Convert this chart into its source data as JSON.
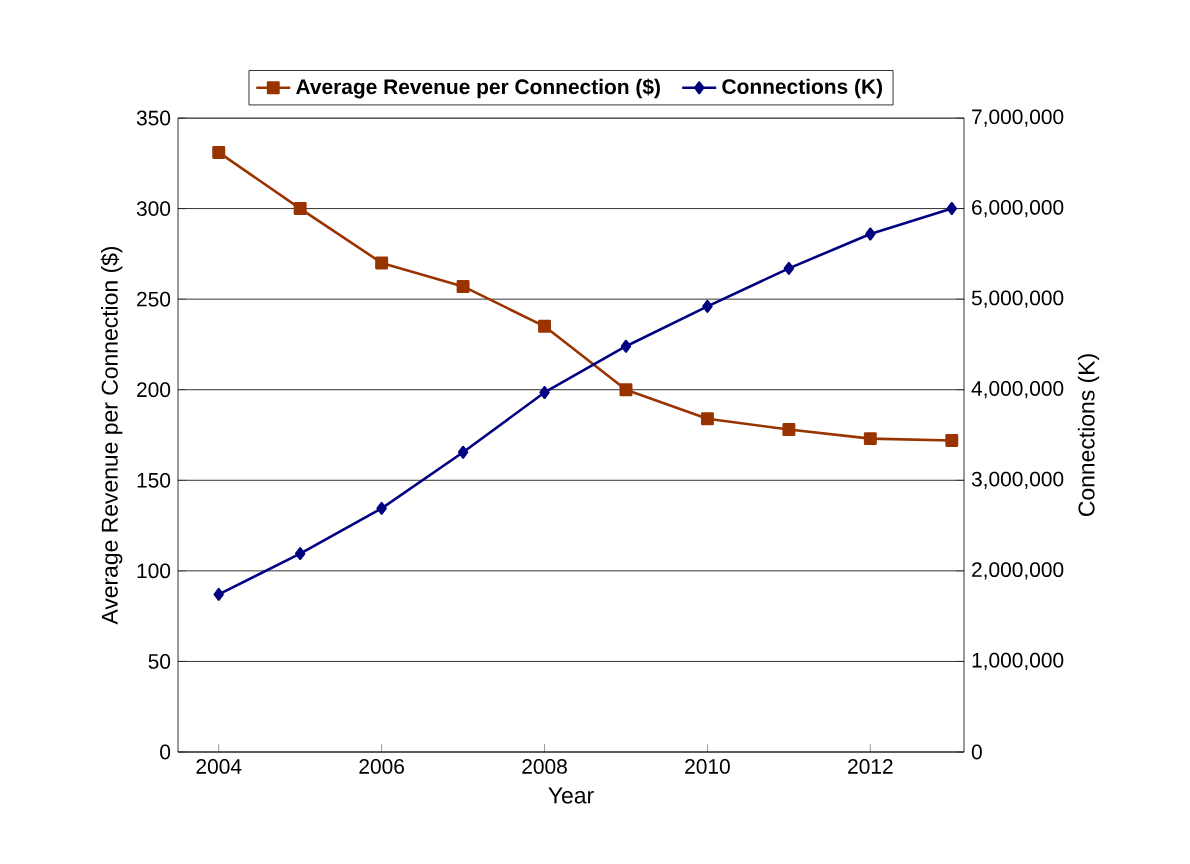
{
  "chart_data": {
    "type": "line",
    "xlabel": "Year",
    "ylabel": "Average Revenue per Connection ($)",
    "y2label": "Connections (K)",
    "x": [
      2004,
      2005,
      2006,
      2007,
      2008,
      2009,
      2010,
      2011,
      2012,
      2013
    ],
    "series": [
      {
        "name": "Average Revenue per Connection ($)",
        "color": "#993300",
        "marker": "square",
        "values": [
          331,
          300,
          270,
          257,
          235,
          200,
          184,
          178,
          173,
          172
        ]
      },
      {
        "name": "Connections (K)",
        "color": "#000080",
        "marker": "diamond",
        "axis": "y2",
        "values": [
          1740000,
          2190000,
          2690000,
          3310000,
          3970000,
          4480000,
          4920000,
          5340000,
          5720000,
          6000000
        ]
      }
    ],
    "xlim": [
      2003.5,
      2013.15
    ],
    "xticks": [
      2004,
      2006,
      2008,
      2010,
      2012
    ],
    "ylim": [
      0,
      350
    ],
    "yticks": [
      0,
      50,
      100,
      150,
      200,
      250,
      300,
      350
    ],
    "y2lim": [
      0,
      7000000
    ],
    "y2ticks": [
      {
        "value": 0,
        "label": "0"
      },
      {
        "value": 1000000,
        "label": "1,000,000"
      },
      {
        "value": 2000000,
        "label": "2,000,000"
      },
      {
        "value": 3000000,
        "label": "3,000,000"
      },
      {
        "value": 4000000,
        "label": "4,000,000"
      },
      {
        "value": 5000000,
        "label": "5,000,000"
      },
      {
        "value": 6000000,
        "label": "6,000,000"
      },
      {
        "value": 7000000,
        "label": "7,000,000"
      }
    ],
    "grid": "y",
    "legend": "top",
    "line_style": "solid"
  }
}
